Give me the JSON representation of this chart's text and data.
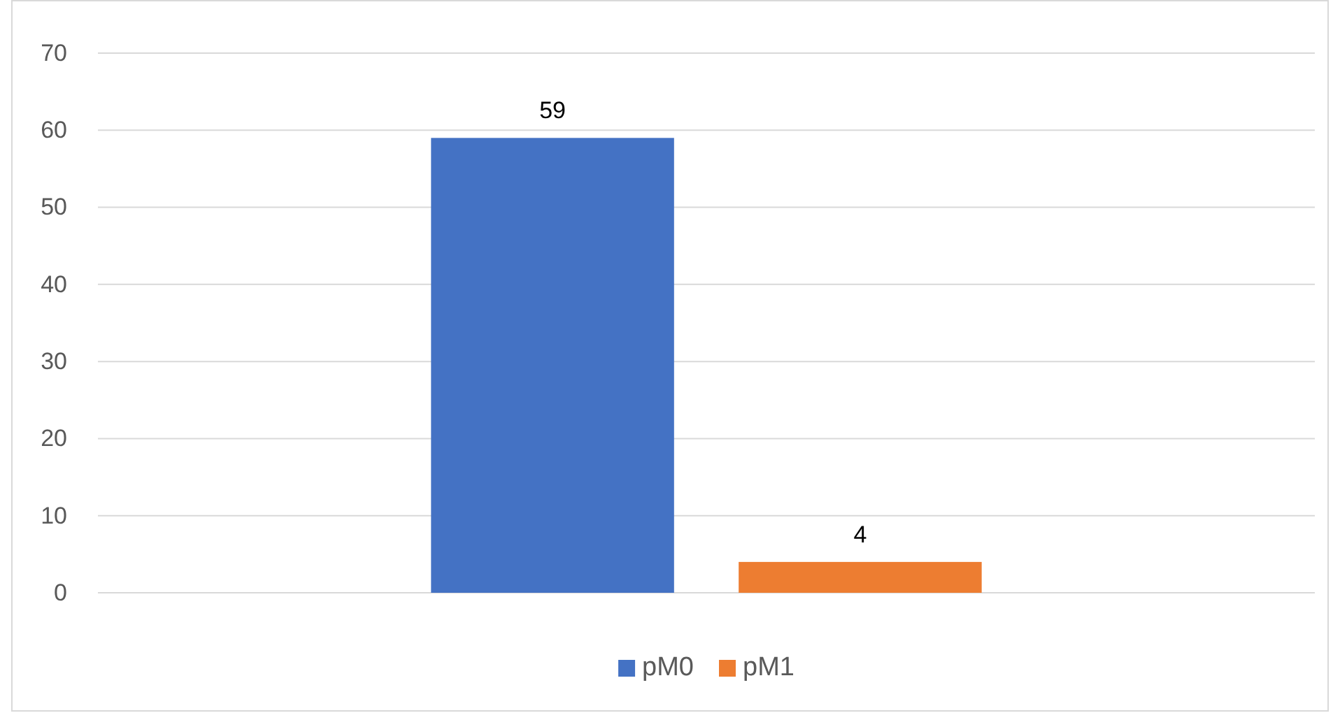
{
  "chart_data": {
    "type": "bar",
    "categories": [
      null
    ],
    "series": [
      {
        "name": "pM0",
        "color": "#4472c4",
        "values": [
          59
        ]
      },
      {
        "name": "pM1",
        "color": "#ed7d31",
        "values": [
          4
        ]
      }
    ],
    "ylim": [
      0,
      70
    ],
    "yticks": [
      0,
      10,
      20,
      30,
      40,
      50,
      60,
      70
    ],
    "grid": "y",
    "legend": "bottom",
    "data_labels": true
  }
}
